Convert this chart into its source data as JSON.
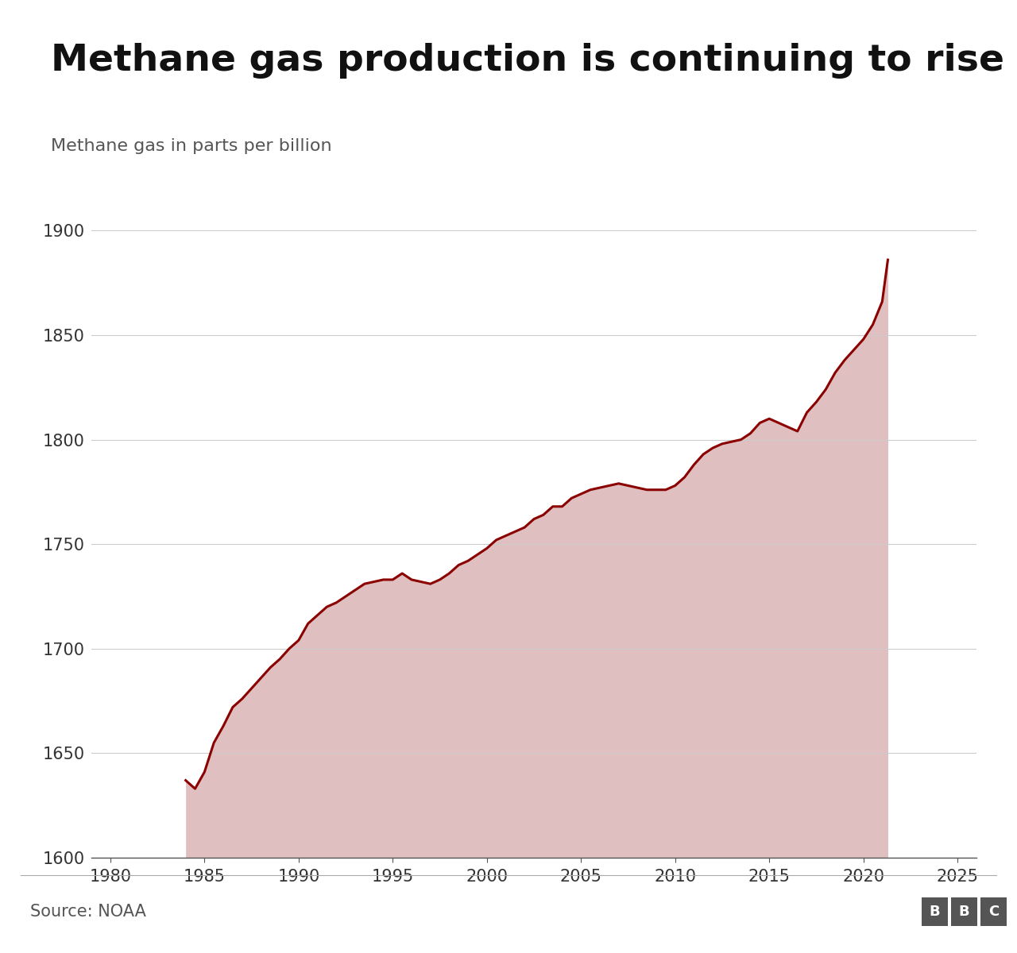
{
  "title": "Methane gas production is continuing to rise",
  "ylabel": "Methane gas in parts per billion",
  "source": "Source: NOAA",
  "line_color": "#8B0000",
  "fill_color_rgb": [
    0.72,
    0.45,
    0.45
  ],
  "fill_alpha": 0.45,
  "background_color": "#FFFFFF",
  "ylim": [
    1600,
    1910
  ],
  "xlim": [
    1979,
    2026
  ],
  "yticks": [
    1600,
    1650,
    1700,
    1750,
    1800,
    1850,
    1900
  ],
  "xticks": [
    1980,
    1985,
    1990,
    1995,
    2000,
    2005,
    2010,
    2015,
    2020,
    2025
  ],
  "years": [
    1984.0,
    1984.5,
    1985.0,
    1985.5,
    1986.0,
    1986.5,
    1987.0,
    1987.5,
    1988.0,
    1988.5,
    1989.0,
    1989.5,
    1990.0,
    1990.5,
    1991.0,
    1991.5,
    1992.0,
    1992.5,
    1993.0,
    1993.5,
    1994.0,
    1994.5,
    1995.0,
    1995.5,
    1996.0,
    1996.5,
    1997.0,
    1997.5,
    1998.0,
    1998.5,
    1999.0,
    1999.5,
    2000.0,
    2000.5,
    2001.0,
    2001.5,
    2002.0,
    2002.5,
    2003.0,
    2003.5,
    2004.0,
    2004.5,
    2005.0,
    2005.5,
    2006.0,
    2006.5,
    2007.0,
    2007.5,
    2008.0,
    2008.5,
    2009.0,
    2009.5,
    2010.0,
    2010.5,
    2011.0,
    2011.5,
    2012.0,
    2012.5,
    2013.0,
    2013.5,
    2014.0,
    2014.5,
    2015.0,
    2015.5,
    2016.0,
    2016.5,
    2017.0,
    2017.5,
    2018.0,
    2018.5,
    2019.0,
    2019.5,
    2020.0,
    2020.5,
    2021.0,
    2021.3
  ],
  "values": [
    1637,
    1633,
    1641,
    1655,
    1663,
    1672,
    1676,
    1681,
    1686,
    1691,
    1695,
    1700,
    1704,
    1712,
    1716,
    1720,
    1722,
    1725,
    1728,
    1731,
    1732,
    1733,
    1733,
    1736,
    1733,
    1732,
    1731,
    1733,
    1736,
    1740,
    1742,
    1745,
    1748,
    1752,
    1754,
    1756,
    1758,
    1762,
    1764,
    1768,
    1768,
    1772,
    1774,
    1776,
    1777,
    1778,
    1779,
    1778,
    1777,
    1776,
    1776,
    1776,
    1778,
    1782,
    1788,
    1793,
    1796,
    1798,
    1799,
    1800,
    1803,
    1808,
    1810,
    1808,
    1806,
    1804,
    1813,
    1818,
    1824,
    1832,
    1838,
    1843,
    1848,
    1855,
    1866,
    1886
  ]
}
